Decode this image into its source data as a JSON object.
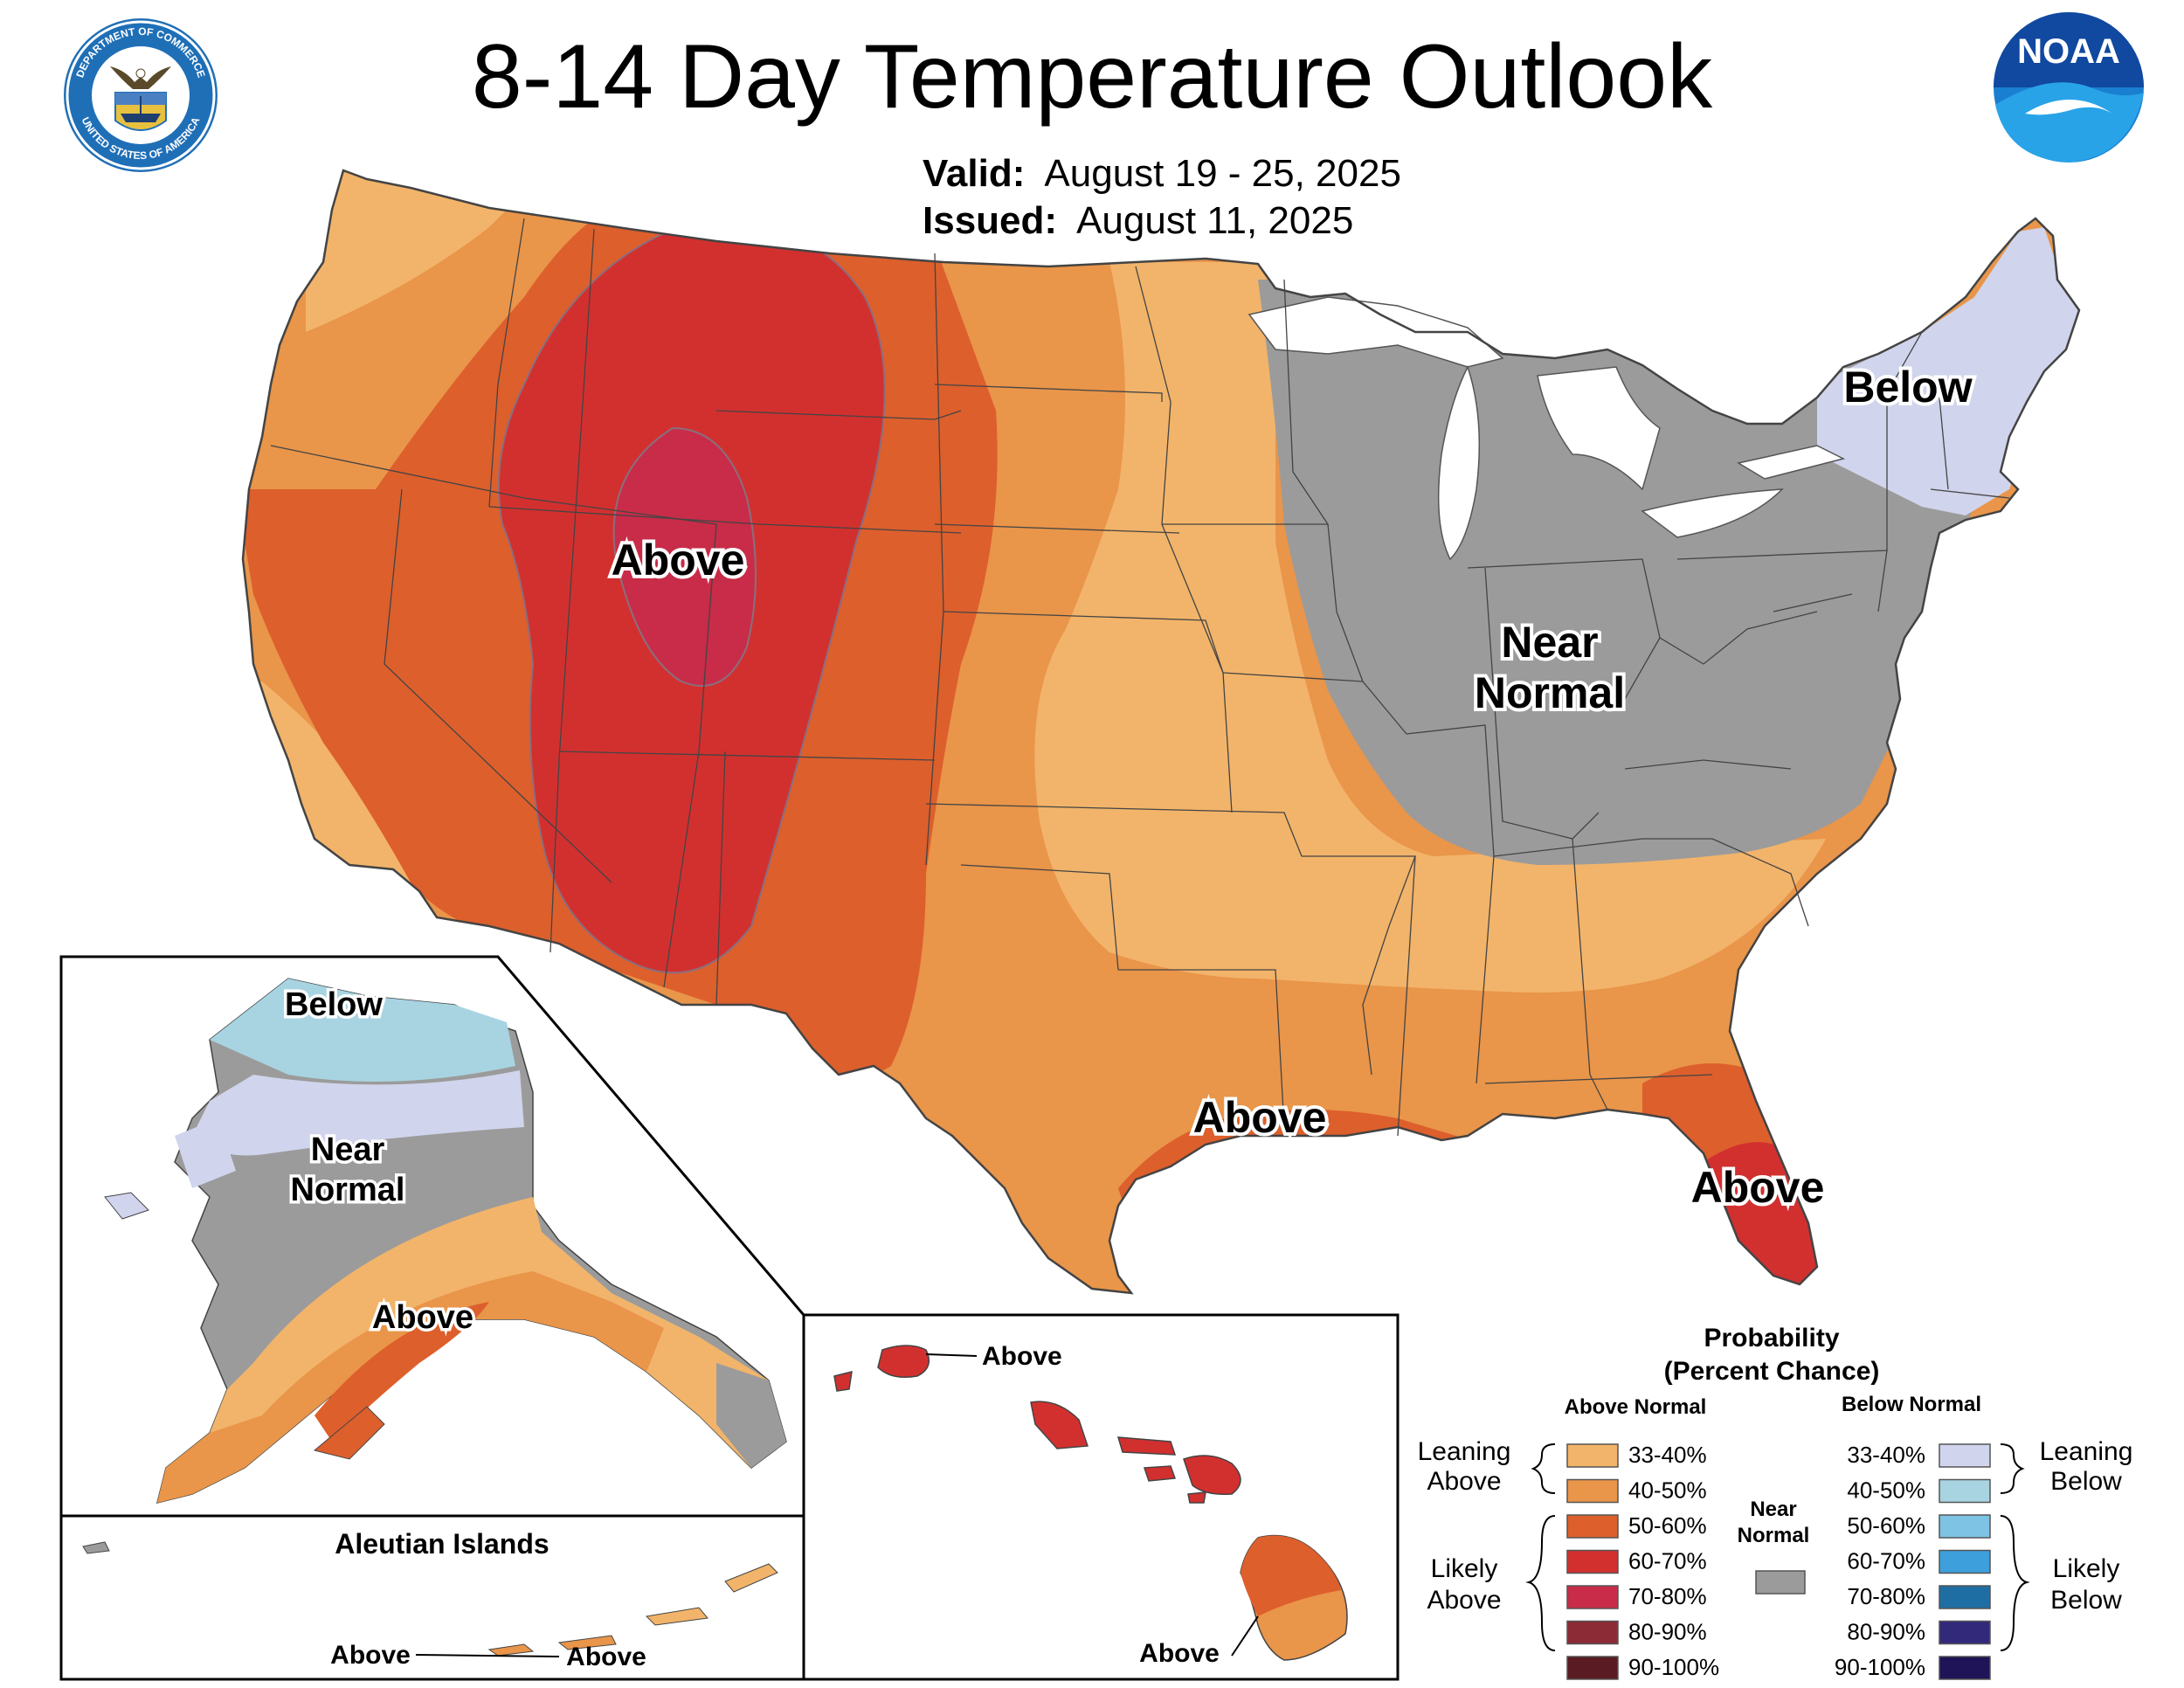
{
  "header": {
    "title": "8-14 Day Temperature Outlook",
    "valid_label": "Valid:",
    "valid_value": "August 19 - 25, 2025",
    "issued_label": "Issued:",
    "issued_value": "August 11, 2025",
    "doc_seal_text_top": "DEPARTMENT OF COMMERCE",
    "doc_seal_text_bottom": "UNITED STATES OF AMERICA",
    "noaa_logo_text": "NOAA"
  },
  "map_labels": {
    "west_above": "Above",
    "northeast_below": "Below",
    "near_normal_1": "Near",
    "near_normal_2": "Normal",
    "gulf_above": "Above",
    "florida_above": "Above"
  },
  "alaska": {
    "below": "Below",
    "near_1": "Near",
    "near_2": "Normal",
    "above": "Above"
  },
  "aleutians": {
    "title": "Aleutian Islands",
    "above_west": "Above",
    "above_east": "Above"
  },
  "hawaii": {
    "above_north": "Above",
    "above_south": "Above"
  },
  "legend": {
    "title_1": "Probability",
    "title_2": "(Percent Chance)",
    "above_header": "Above Normal",
    "below_header": "Below Normal",
    "near_1": "Near",
    "near_2": "Normal",
    "leaning_above_1": "Leaning",
    "leaning_above_2": "Above",
    "likely_above_1": "Likely",
    "likely_above_2": "Above",
    "leaning_below_1": "Leaning",
    "leaning_below_2": "Below",
    "likely_below_1": "Likely",
    "likely_below_2": "Below",
    "above_bins": [
      {
        "label": "33-40%",
        "color": "#f2b46a"
      },
      {
        "label": "40-50%",
        "color": "#e9954a"
      },
      {
        "label": "50-60%",
        "color": "#dd5f2c"
      },
      {
        "label": "60-70%",
        "color": "#d2302f"
      },
      {
        "label": "70-80%",
        "color": "#c82c48"
      },
      {
        "label": "80-90%",
        "color": "#8c2a36"
      },
      {
        "label": "90-100%",
        "color": "#5a1b23"
      }
    ],
    "below_bins": [
      {
        "label": "33-40%",
        "color": "#d0d4ec"
      },
      {
        "label": "40-50%",
        "color": "#a8d4e2"
      },
      {
        "label": "50-60%",
        "color": "#7ec2e4"
      },
      {
        "label": "60-70%",
        "color": "#3d9fdb"
      },
      {
        "label": "70-80%",
        "color": "#1f6ea3"
      },
      {
        "label": "80-90%",
        "color": "#33297a"
      },
      {
        "label": "90-100%",
        "color": "#1e1457"
      }
    ],
    "near_color": "#9b9b9b"
  }
}
